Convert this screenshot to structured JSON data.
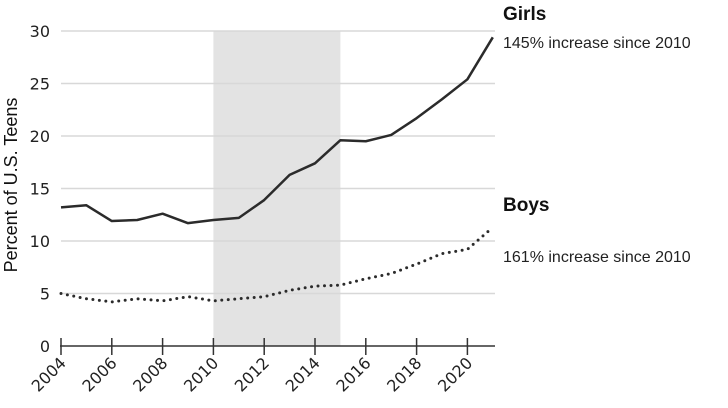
{
  "chart_data": {
    "type": "line",
    "title": "",
    "xlabel": "",
    "ylabel": "Percent of U.S. Teens",
    "xlim": [
      2004,
      2021
    ],
    "ylim": [
      0,
      30
    ],
    "yticks": [
      0,
      5,
      10,
      15,
      20,
      25,
      30
    ],
    "xticks": [
      2004,
      2006,
      2008,
      2010,
      2012,
      2014,
      2016,
      2018,
      2020
    ],
    "grid": "horizontal",
    "shaded_range": [
      2010,
      2015
    ],
    "x": [
      2004,
      2005,
      2006,
      2007,
      2008,
      2009,
      2010,
      2011,
      2012,
      2013,
      2014,
      2015,
      2016,
      2017,
      2018,
      2019,
      2020,
      2021
    ],
    "series": [
      {
        "name": "Girls",
        "annotation": "145% increase since 2010",
        "style": "solid",
        "color": "#2b2b2b",
        "values": [
          13.2,
          13.4,
          11.9,
          12.0,
          12.6,
          11.7,
          12.0,
          12.2,
          13.9,
          16.3,
          17.4,
          19.6,
          19.5,
          20.1,
          21.7,
          23.5,
          25.4,
          29.4
        ]
      },
      {
        "name": "Boys",
        "annotation": "161% increase since 2010",
        "style": "dotted",
        "color": "#2b2b2b",
        "values": [
          5.0,
          4.5,
          4.2,
          4.5,
          4.3,
          4.7,
          4.3,
          4.5,
          4.7,
          5.3,
          5.7,
          5.8,
          6.4,
          6.9,
          7.8,
          8.8,
          9.2,
          11.3
        ]
      }
    ]
  }
}
